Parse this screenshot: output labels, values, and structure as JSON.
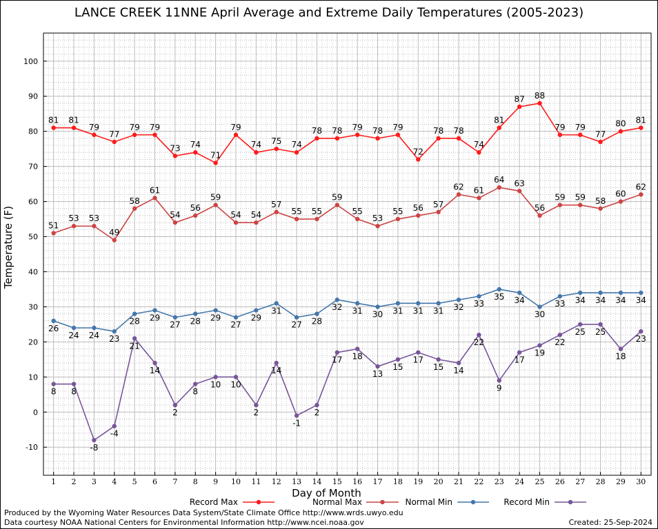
{
  "chart_data": {
    "type": "line",
    "title": "LANCE CREEK 11NNE April Average and Extreme Daily Temperatures (2005-2023)",
    "xlabel": "Day of Month",
    "ylabel": "Temperature (F)",
    "ylim": [
      -18,
      108
    ],
    "xlim": [
      0.5,
      30.5
    ],
    "yticks": [
      -10,
      0,
      10,
      20,
      30,
      40,
      50,
      60,
      70,
      80,
      90,
      100
    ],
    "grid": true,
    "legend_position": "bottom",
    "x": [
      1,
      2,
      3,
      4,
      5,
      6,
      7,
      8,
      9,
      10,
      11,
      12,
      13,
      14,
      15,
      16,
      17,
      18,
      19,
      20,
      21,
      22,
      23,
      24,
      25,
      26,
      27,
      28,
      29,
      30
    ],
    "series": [
      {
        "name": "Record Max",
        "color": "#ff1a1a",
        "label_pos": "above",
        "values": [
          81,
          81,
          79,
          77,
          79,
          79,
          73,
          74,
          71,
          79,
          74,
          75,
          74,
          78,
          78,
          79,
          78,
          79,
          72,
          78,
          78,
          74,
          81,
          87,
          88,
          79,
          79,
          77,
          80,
          81
        ]
      },
      {
        "name": "Normal Max",
        "color": "#cc4444",
        "label_pos": "above",
        "values": [
          51,
          53,
          53,
          49,
          58,
          61,
          54,
          56,
          59,
          54,
          54,
          57,
          55,
          55,
          59,
          55,
          53,
          55,
          56,
          57,
          62,
          61,
          64,
          63,
          56,
          59,
          59,
          58,
          60,
          62
        ]
      },
      {
        "name": "Normal Min",
        "color": "#4477aa",
        "label_pos": "below",
        "values": [
          26,
          24,
          24,
          23,
          28,
          29,
          27,
          28,
          29,
          27,
          29,
          31,
          27,
          28,
          32,
          31,
          30,
          31,
          31,
          31,
          32,
          33,
          35,
          34,
          30,
          33,
          34,
          34,
          34,
          34
        ]
      },
      {
        "name": "Record Min",
        "color": "#775599",
        "label_pos": "below",
        "values": [
          8,
          8,
          -8,
          -4,
          21,
          14,
          2,
          8,
          10,
          10,
          2,
          14,
          -1,
          2,
          17,
          18,
          13,
          15,
          17,
          15,
          14,
          22,
          9,
          17,
          19,
          22,
          25,
          25,
          18,
          23
        ]
      }
    ]
  },
  "footer": {
    "produced_by": "Produced by the Wyoming Water Resources Data System/State Climate Office http://www.wrds.uwyo.edu",
    "courtesy": "Data courtesy NOAA National Centers for Environmental Information http://www.ncei.noaa.gov",
    "created": "Created:  25-Sep-2024"
  }
}
